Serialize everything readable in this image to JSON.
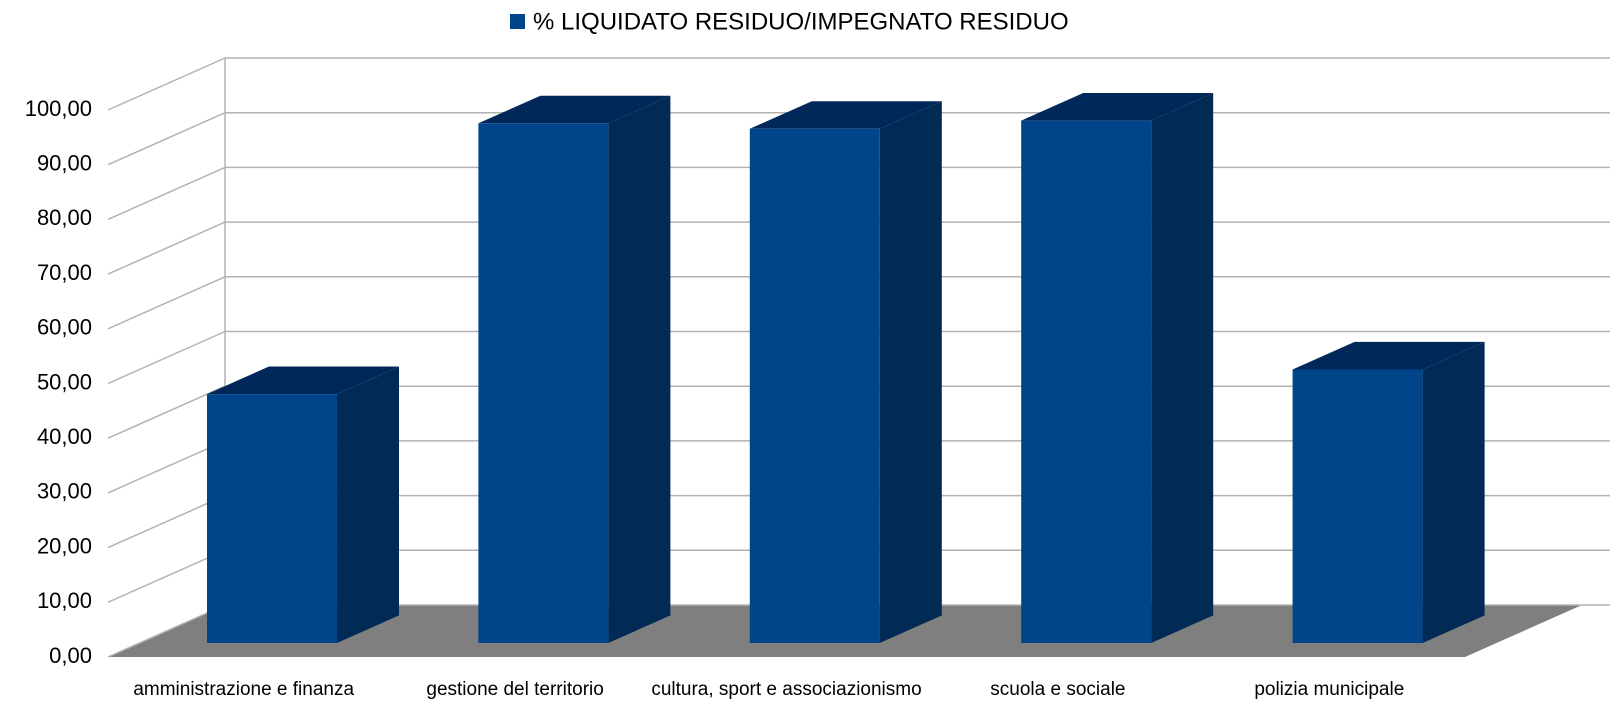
{
  "chart_data": {
    "type": "bar3d",
    "categories": [
      "amministrazione e finanza",
      "gestione del territorio",
      "cultura, sport e associazionismo",
      "scuola e sociale",
      "polizia municipale"
    ],
    "series": [
      {
        "name": "% LIQUIDATO RESIDUO/IMPEGNATO RESIDUO",
        "color": "#00448a",
        "values": [
          45.5,
          95,
          94,
          95.5,
          50
        ]
      }
    ],
    "ylim": [
      0,
      100
    ],
    "yticks": [
      {
        "value": 0,
        "label": "0,00"
      },
      {
        "value": 10,
        "label": "10,00"
      },
      {
        "value": 20,
        "label": "20,00"
      },
      {
        "value": 30,
        "label": "30,00"
      },
      {
        "value": 40,
        "label": "40,00"
      },
      {
        "value": 50,
        "label": "50,00"
      },
      {
        "value": 60,
        "label": "60,00"
      },
      {
        "value": 70,
        "label": "70,00"
      },
      {
        "value": 80,
        "label": "80,00"
      },
      {
        "value": 90,
        "label": "90,00"
      },
      {
        "value": 100,
        "label": "100,00"
      }
    ],
    "grid": true,
    "legend": "top"
  }
}
